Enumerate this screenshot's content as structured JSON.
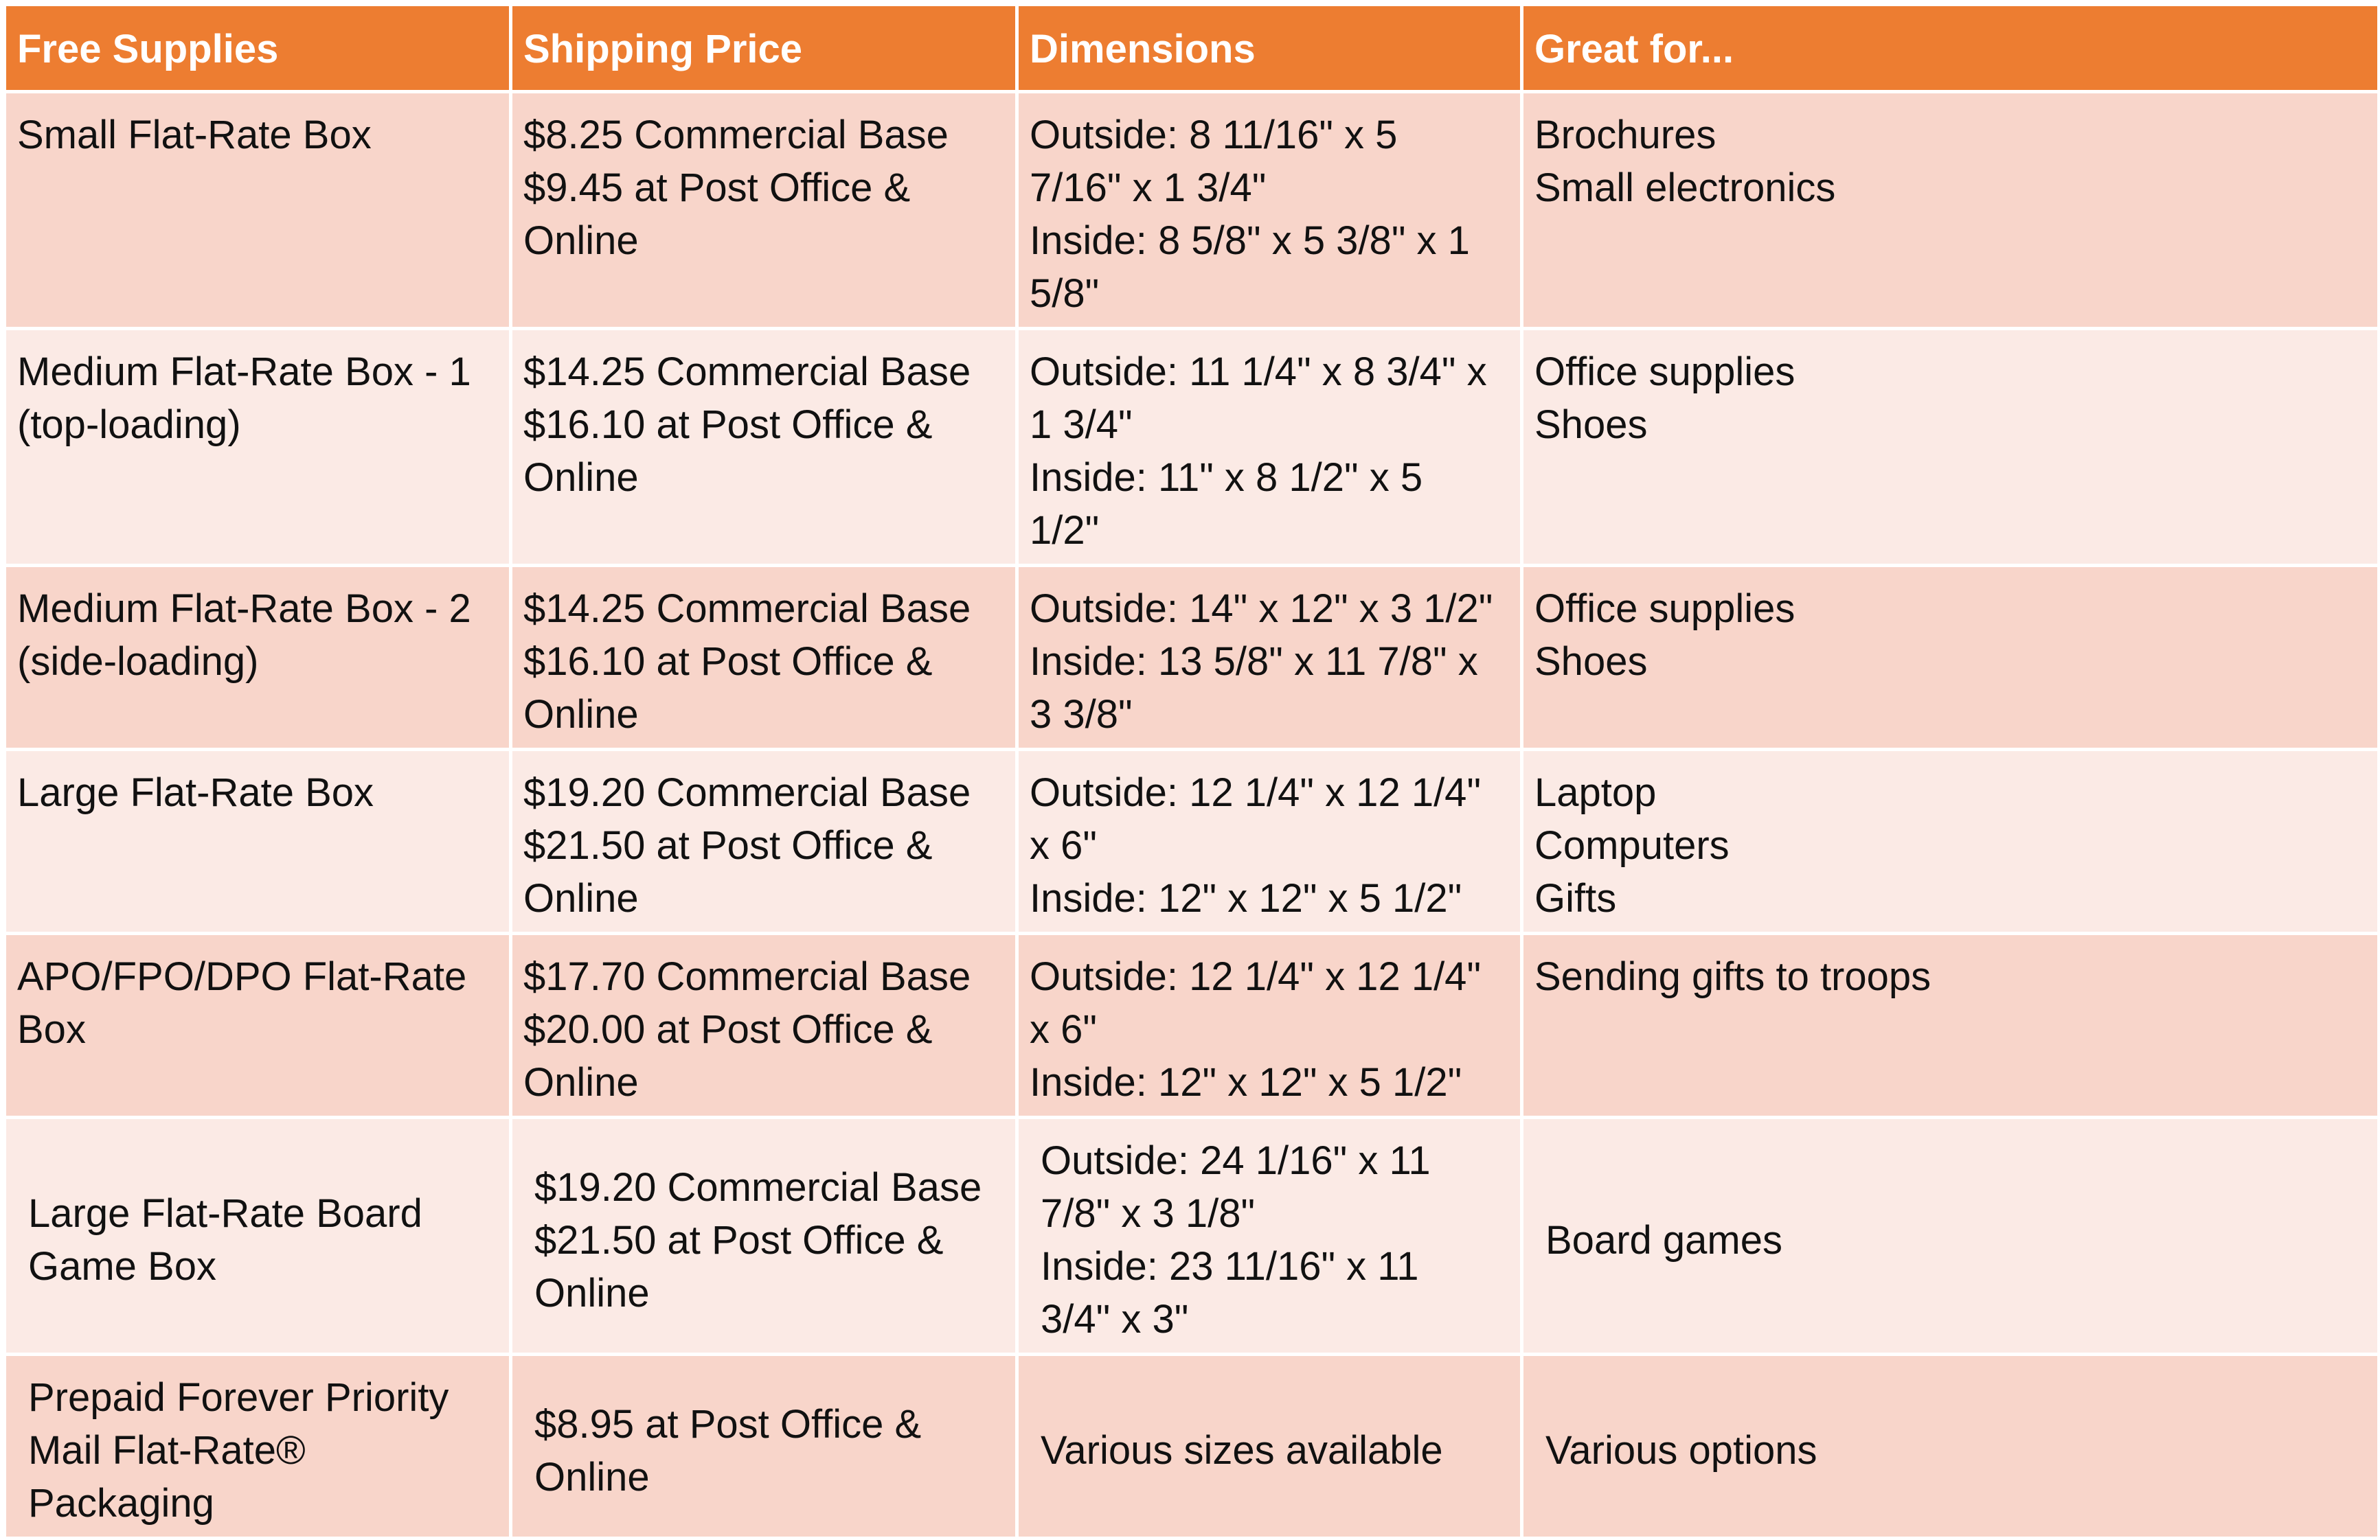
{
  "table": {
    "headers": [
      "Free Supplies",
      "Shipping Price",
      "Dimensions",
      "Great for..."
    ],
    "rows": [
      {
        "name": "Small Flat-Rate Box",
        "price": "$8.25 Commercial Base\n$9.45 at Post Office &\nOnline",
        "dimensions": "Outside: 8 11/16\" x 5\n7/16\" x 1 3/4\"\nInside: 8 5/8\" x 5 3/8\" x 1\n5/8\"",
        "great_for": "Brochures\nSmall electronics"
      },
      {
        "name": "Medium Flat-Rate Box - 1\n(top-loading)",
        "price": "$14.25 Commercial Base\n$16.10 at Post Office &\nOnline",
        "dimensions": "Outside: 11 1/4\" x 8 3/4\" x\n1 3/4\"\nInside: 11\" x 8 1/2\" x 5\n1/2\"",
        "great_for": "Office supplies\nShoes"
      },
      {
        "name": "Medium Flat-Rate Box - 2\n(side-loading)",
        "price": "$14.25 Commercial Base\n$16.10 at Post Office &\nOnline",
        "dimensions": "Outside: 14\" x 12\" x 3 1/2\"\nInside: 13 5/8\" x 11 7/8\" x\n3 3/8\"",
        "great_for": "Office supplies\nShoes"
      },
      {
        "name": "Large Flat-Rate Box",
        "price": "$19.20 Commercial Base\n$21.50 at Post Office &\nOnline",
        "dimensions": "Outside: 12 1/4\" x 12 1/4\"\nx 6\"\nInside: 12\" x 12\" x 5 1/2\"",
        "great_for": "Laptop\nComputers\nGifts"
      },
      {
        "name": "APO/FPO/DPO Flat-Rate\nBox",
        "price": "$17.70 Commercial Base\n$20.00 at Post Office &\nOnline",
        "dimensions": "Outside: 12 1/4\" x 12 1/4\"\nx 6\"\nInside: 12\" x 12\" x 5 1/2\"",
        "great_for": "Sending gifts to troops"
      },
      {
        "name": "Large Flat-Rate Board\nGame Box",
        "price": "$19.20 Commercial Base\n$21.50 at Post Office &\nOnline",
        "dimensions": "Outside: 24 1/16\" x 11\n7/8\" x 3 1/8\"\nInside: 23 11/16\" x 11\n3/4\" x 3\"",
        "great_for": "Board games"
      },
      {
        "name": "Prepaid Forever Priority\nMail Flat-Rate® Packaging",
        "price": "$8.95 at Post Office &\nOnline",
        "dimensions": "Various sizes available",
        "great_for": "Various options"
      }
    ]
  },
  "colors": {
    "header_bg": "#ED7D31",
    "row_odd_bg": "#F8D5CA",
    "row_even_bg": "#FBEAE5",
    "header_text": "#FFFFFF"
  }
}
